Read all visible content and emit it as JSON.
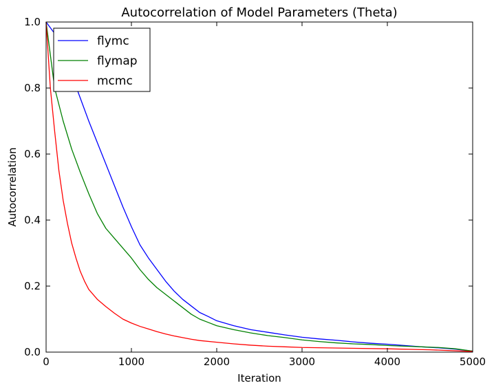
{
  "chart_data": {
    "type": "line",
    "title": "Autocorrelation of Model Parameters (Theta)",
    "xlabel": "Iteration",
    "ylabel": "Autocorrelation",
    "xlim": [
      0,
      5000
    ],
    "ylim": [
      0,
      1.0
    ],
    "xticks": [
      0,
      1000,
      2000,
      3000,
      4000,
      5000
    ],
    "yticks": [
      0.0,
      0.2,
      0.4,
      0.6,
      0.8,
      1.0
    ],
    "xtick_labels": [
      "0",
      "1000",
      "2000",
      "3000",
      "4000",
      "5000"
    ],
    "ytick_labels": [
      "0.0",
      "0.2",
      "0.4",
      "0.6",
      "0.8",
      "1.0"
    ],
    "grid": false,
    "legend_position": "top-left",
    "series": [
      {
        "name": "flymc",
        "color": "#0000ff",
        "x": [
          0,
          100,
          200,
          300,
          400,
          500,
          600,
          700,
          800,
          900,
          1000,
          1100,
          1200,
          1300,
          1400,
          1500,
          1600,
          1700,
          1800,
          1900,
          2000,
          2200,
          2400,
          2600,
          2800,
          3000,
          3200,
          3400,
          3600,
          3800,
          4000,
          4200,
          4400,
          4600,
          4800,
          5000
        ],
        "y": [
          1.0,
          0.965,
          0.92,
          0.84,
          0.77,
          0.7,
          0.635,
          0.57,
          0.505,
          0.44,
          0.38,
          0.325,
          0.285,
          0.25,
          0.215,
          0.185,
          0.16,
          0.14,
          0.12,
          0.108,
          0.095,
          0.08,
          0.068,
          0.06,
          0.052,
          0.045,
          0.04,
          0.036,
          0.031,
          0.027,
          0.024,
          0.02,
          0.016,
          0.013,
          0.009,
          0.003
        ]
      },
      {
        "name": "flymap",
        "color": "#008000",
        "x": [
          0,
          100,
          200,
          300,
          400,
          500,
          600,
          700,
          800,
          900,
          1000,
          1100,
          1200,
          1300,
          1400,
          1500,
          1600,
          1700,
          1800,
          1900,
          2000,
          2200,
          2400,
          2600,
          2800,
          3000,
          3200,
          3400,
          3600,
          3800,
          4000,
          4200,
          4400,
          4600,
          4800,
          5000
        ],
        "y": [
          1.0,
          0.8,
          0.7,
          0.615,
          0.545,
          0.48,
          0.42,
          0.375,
          0.345,
          0.315,
          0.285,
          0.25,
          0.22,
          0.195,
          0.175,
          0.155,
          0.135,
          0.115,
          0.1,
          0.09,
          0.08,
          0.068,
          0.058,
          0.05,
          0.044,
          0.037,
          0.032,
          0.028,
          0.025,
          0.023,
          0.02,
          0.018,
          0.016,
          0.014,
          0.01,
          0.003
        ]
      },
      {
        "name": "mcmc",
        "color": "#ff0000",
        "x": [
          0,
          50,
          100,
          150,
          200,
          250,
          300,
          350,
          400,
          450,
          500,
          600,
          700,
          800,
          900,
          1000,
          1100,
          1200,
          1300,
          1400,
          1500,
          1600,
          1700,
          1800,
          2000,
          2200,
          2400,
          2600,
          2800,
          3000,
          3500,
          4000,
          4500,
          5000
        ],
        "y": [
          1.0,
          0.8,
          0.67,
          0.55,
          0.46,
          0.39,
          0.33,
          0.285,
          0.245,
          0.215,
          0.19,
          0.16,
          0.138,
          0.118,
          0.1,
          0.088,
          0.078,
          0.07,
          0.062,
          0.055,
          0.049,
          0.044,
          0.039,
          0.035,
          0.03,
          0.025,
          0.021,
          0.018,
          0.016,
          0.014,
          0.012,
          0.01,
          0.007,
          0.002
        ]
      }
    ]
  }
}
